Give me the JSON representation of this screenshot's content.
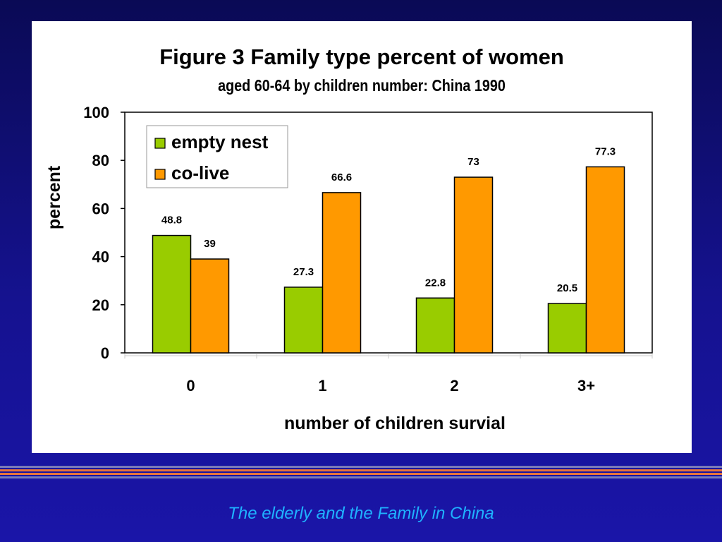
{
  "footer_text": "The elderly and the Family in China",
  "colors": {
    "background": "#15128f",
    "empty_nest": "#99cc00",
    "co_live": "#ff9900",
    "footer_text": "#1fb2ff",
    "stripe_accent": "#e8743b"
  },
  "chart_data": {
    "type": "bar",
    "title": "Figure 3  Family type percent of women",
    "subtitle": "aged 60-64 by children number: China 1990",
    "xlabel": "number of children survial",
    "ylabel": "percent",
    "categories": [
      "0",
      "1",
      "2",
      "3+"
    ],
    "series": [
      {
        "name": "empty nest",
        "color": "#99cc00",
        "values": [
          48.8,
          27.3,
          22.8,
          20.5
        ],
        "labels": [
          "48.8",
          "27.3",
          "22.8",
          "20.5"
        ]
      },
      {
        "name": "co-live",
        "color": "#ff9900",
        "values": [
          39,
          66.6,
          73,
          77.3
        ],
        "labels": [
          "39",
          "66.6",
          "73",
          "77.3"
        ]
      }
    ],
    "ylim": [
      0,
      100
    ],
    "yticks": [
      0,
      20,
      40,
      60,
      80,
      100
    ],
    "ytick_labels": [
      "0",
      "20",
      "40",
      "60",
      "80",
      "100"
    ],
    "grid": false,
    "legend_position": "top-left"
  }
}
